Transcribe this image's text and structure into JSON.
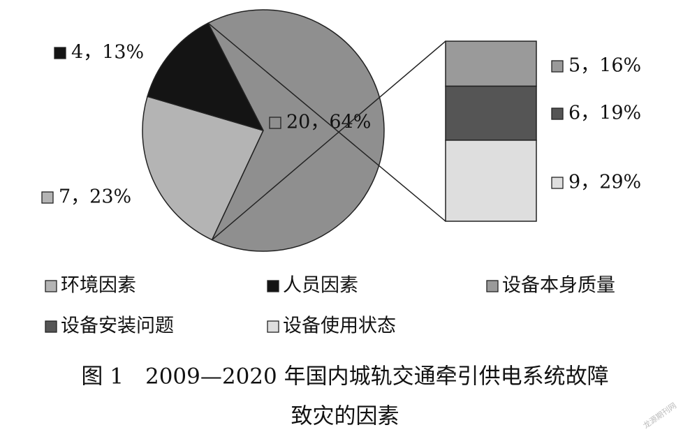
{
  "chart_data": {
    "type": "bar-of-pie",
    "categories": [
      "环境因素",
      "人员因素",
      null
    ],
    "values": [
      7,
      4,
      20
    ],
    "value_labels": [
      "7，23%",
      "4，13%",
      "20，64%"
    ],
    "colors": [
      "#b4b4b4",
      "#141414",
      "#8f8f8f"
    ],
    "detail": {
      "categories": [
        "设备本身质量",
        "设备安装问题",
        "设备使用状态"
      ],
      "values": [
        5,
        6,
        9
      ],
      "value_labels": [
        "5，16%",
        "6，19%",
        "9，29%"
      ],
      "colors": [
        "#9a9a9a",
        "#555555",
        "#dedede"
      ]
    },
    "caption": [
      "图 1　2009—2020 年国内城轨交通牵引供电系统故障",
      "致灾的因素"
    ],
    "watermark": "龙源期刊网"
  }
}
